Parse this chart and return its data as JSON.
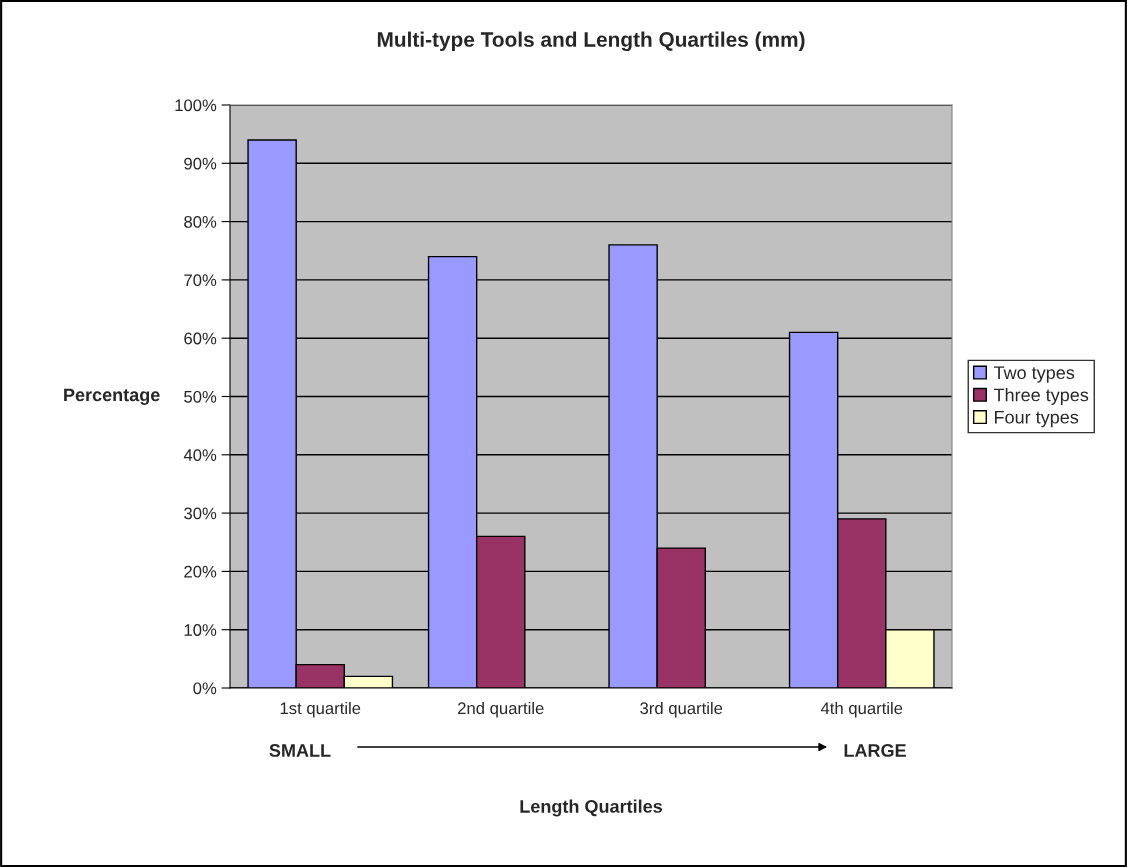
{
  "chart_data": {
    "type": "bar",
    "title": "Multi-type Tools and Length Quartiles (mm)",
    "xlabel": "Length Quartiles",
    "ylabel": "Percentage",
    "categories": [
      "1st quartile",
      "2nd quartile",
      "3rd quartile",
      "4th quartile"
    ],
    "series": [
      {
        "name": "Two types",
        "color": "#9999ff",
        "values": [
          94,
          74,
          76,
          61
        ]
      },
      {
        "name": "Three types",
        "color": "#993366",
        "values": [
          4,
          26,
          24,
          29
        ]
      },
      {
        "name": "Four types",
        "color": "#ffffcc",
        "values": [
          2,
          null,
          null,
          10
        ]
      }
    ],
    "ylim": [
      0,
      100
    ],
    "yticks": [
      {
        "value": 0,
        "label": "0%"
      },
      {
        "value": 10,
        "label": "10%"
      },
      {
        "value": 20,
        "label": "20%"
      },
      {
        "value": 30,
        "label": "30%"
      },
      {
        "value": 40,
        "label": "40%"
      },
      {
        "value": 50,
        "label": "50%"
      },
      {
        "value": 60,
        "label": "60%"
      },
      {
        "value": 70,
        "label": "70%"
      },
      {
        "value": 80,
        "label": "80%"
      },
      {
        "value": 90,
        "label": "90%"
      },
      {
        "value": 100,
        "label": "100%"
      }
    ],
    "annotations": [
      "SMALL",
      "LARGE"
    ],
    "grid": "y",
    "legend": "right"
  }
}
